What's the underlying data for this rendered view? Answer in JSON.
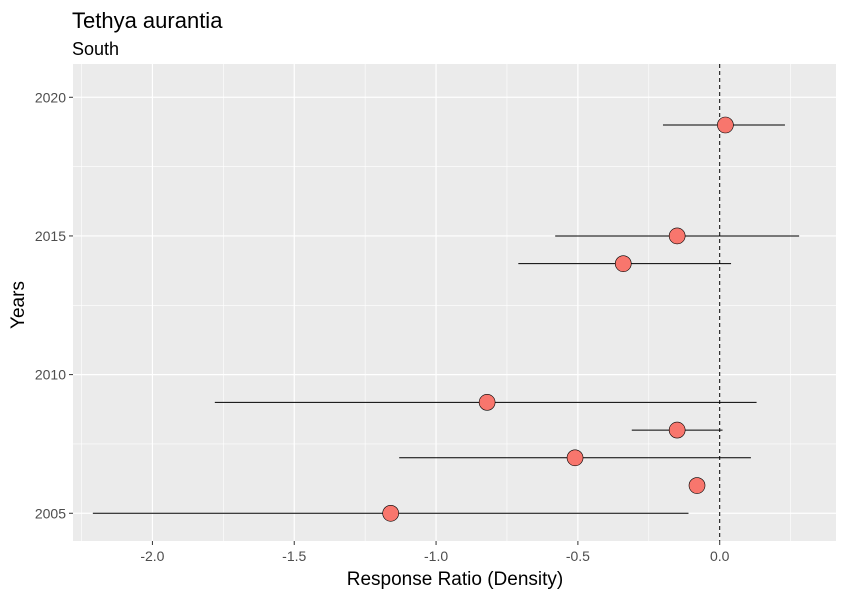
{
  "chart_data": {
    "type": "scatter",
    "title": "Tethya aurantia",
    "subtitle": "South",
    "xlabel": "Response Ratio (Density)",
    "ylabel": "Years",
    "xlim": [
      -2.28,
      0.41
    ],
    "ylim": [
      2004.0,
      2021.2
    ],
    "x_ticks": [
      -2.0,
      -1.5,
      -1.0,
      -0.5,
      0.0
    ],
    "x_tick_labels": [
      "-2.0",
      "-1.5",
      "-1.0",
      "-0.5",
      "0.0"
    ],
    "y_ticks": [
      2005,
      2010,
      2015,
      2020
    ],
    "y_tick_labels": [
      "2005",
      "2010",
      "2015",
      "2020"
    ],
    "reference_line": {
      "x": 0.0,
      "style": "dashed"
    },
    "grid": true,
    "colors": {
      "panel_background": "#ebebeb",
      "grid": "#ffffff",
      "point_fill": "#f8766d",
      "point_stroke": "#000000",
      "error_bar": "#000000"
    },
    "points": [
      {
        "year": 2019,
        "x": 0.02,
        "xmin": -0.2,
        "xmax": 0.23
      },
      {
        "year": 2015,
        "x": -0.15,
        "xmin": -0.58,
        "xmax": 0.28
      },
      {
        "year": 2014,
        "x": -0.34,
        "xmin": -0.71,
        "xmax": 0.04
      },
      {
        "year": 2009,
        "x": -0.82,
        "xmin": -1.78,
        "xmax": 0.13
      },
      {
        "year": 2008,
        "x": -0.15,
        "xmin": -0.31,
        "xmax": 0.01
      },
      {
        "year": 2007,
        "x": -0.51,
        "xmin": -1.13,
        "xmax": 0.11
      },
      {
        "year": 2006,
        "x": -0.08,
        "xmin": -0.08,
        "xmax": -0.08
      },
      {
        "year": 2005,
        "x": -1.16,
        "xmin": -2.21,
        "xmax": -0.11
      }
    ]
  }
}
